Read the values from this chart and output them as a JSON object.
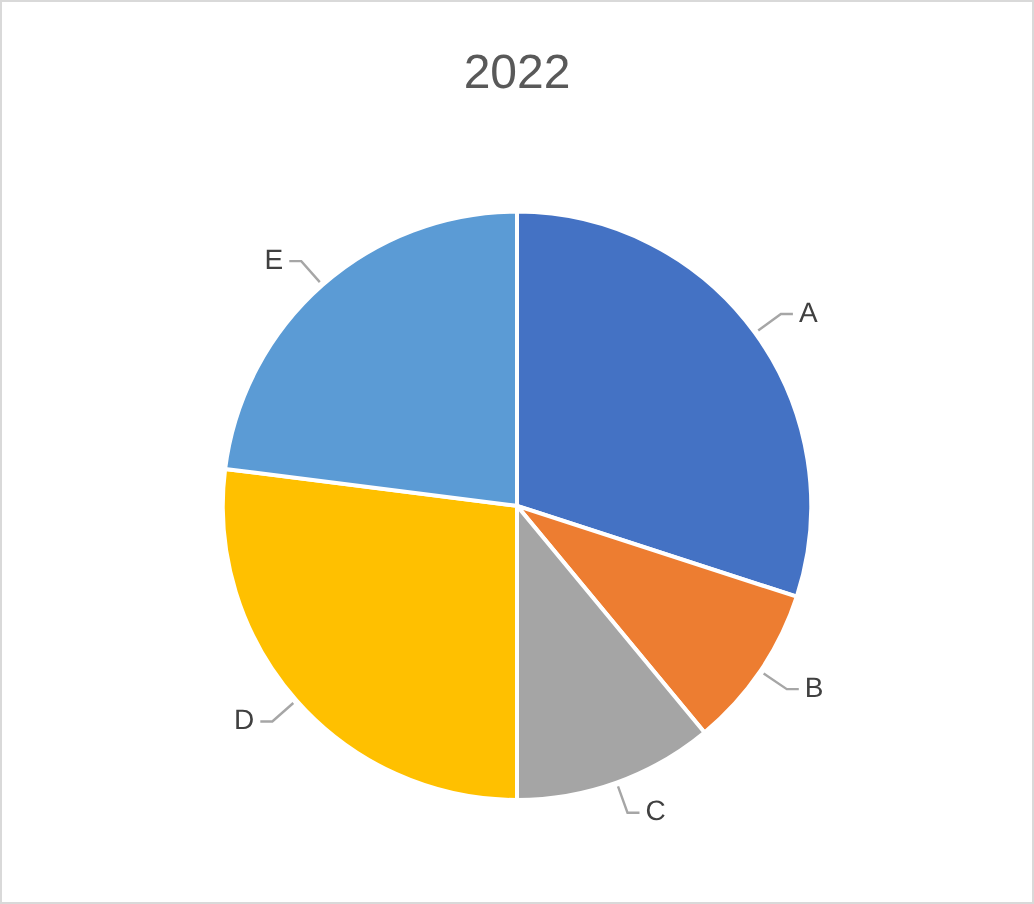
{
  "chart_data": {
    "type": "pie",
    "title": "2022",
    "categories": [
      "A",
      "B",
      "C",
      "D",
      "E"
    ],
    "values": [
      30,
      9,
      11,
      27,
      23
    ],
    "colors": [
      "#4472c4",
      "#ed7d31",
      "#a5a5a5",
      "#ffc000",
      "#5b9bd5"
    ],
    "legend": false
  }
}
